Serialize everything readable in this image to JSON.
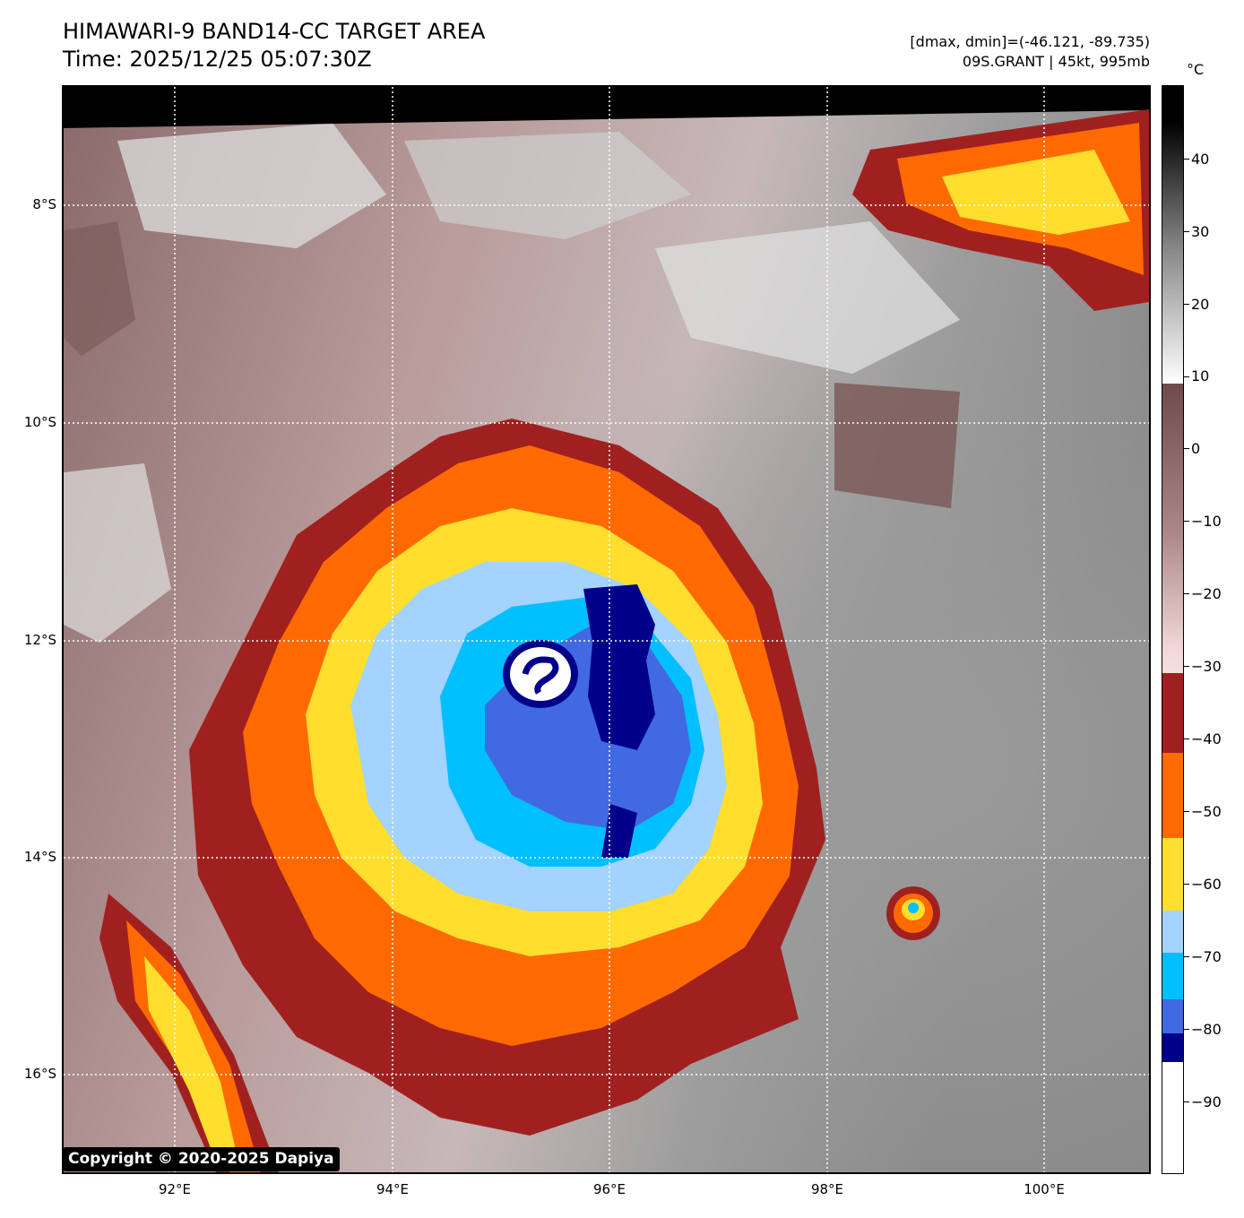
{
  "title": {
    "line1": "HIMAWARI-9 BAND14-CC TARGET AREA",
    "line2": "Time: 2025/12/25 05:07:30Z"
  },
  "meta": {
    "line1": "[dmax, dmin]=(-46.121, -89.735)",
    "line2": "09S.GRANT | 45kt, 995mb"
  },
  "map": {
    "lon_ticks": [
      "92°E",
      "94°E",
      "96°E",
      "98°E",
      "100°E"
    ],
    "lat_ticks": [
      "8°S",
      "10°S",
      "12°S",
      "14°S",
      "16°S"
    ],
    "copyright": "Copyright © 2020-2025 Dapiya"
  },
  "colorbar": {
    "unit": "°C",
    "labels": [
      "40",
      "30",
      "20",
      "10",
      "0",
      "−10",
      "−20",
      "−30",
      "−40",
      "−50",
      "−60",
      "−70",
      "−80",
      "−90"
    ],
    "colors": {
      "black_top": "#000000",
      "gray": "#9a9a9a",
      "white": "#ffffff",
      "brown": "#7a5656",
      "pink": "#f3d8d8",
      "dark_red": "#a02020",
      "orange": "#ff6a00",
      "yellow": "#ffde2e",
      "light_blue": "#a3d3ff",
      "cyan_blue": "#00bfff",
      "royal_blue": "#4169e1",
      "navy": "#00008b"
    }
  }
}
